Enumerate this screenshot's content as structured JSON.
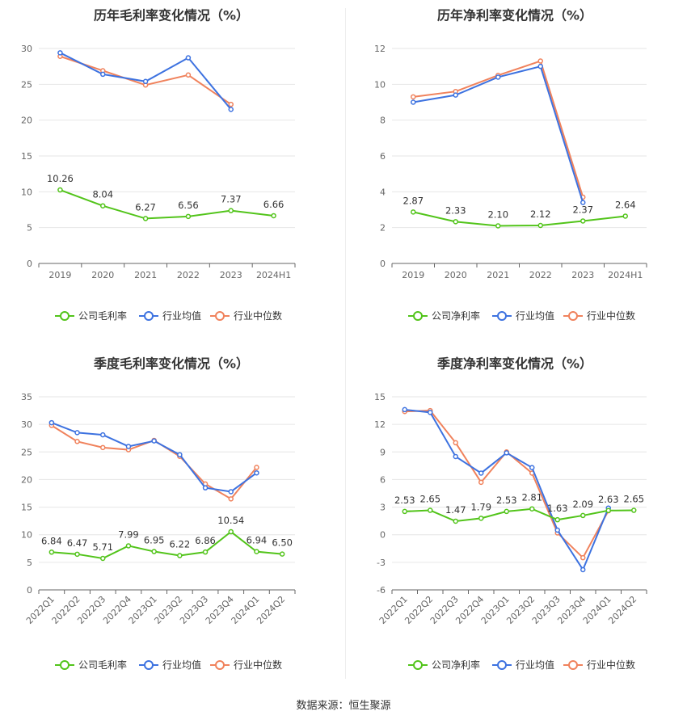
{
  "footer": {
    "label": "数据来源：恒生聚源"
  },
  "colors": {
    "company": "#52c41a",
    "avg": "#3d72e0",
    "median": "#f0825c",
    "grid": "#e6e6e6",
    "axis": "#666666"
  },
  "chart_data": [
    {
      "type": "line",
      "title": "历年毛利率变化情况（%）",
      "categories": [
        "2019",
        "2020",
        "2021",
        "2022",
        "2023",
        "2024H1"
      ],
      "ylim": [
        0,
        30
      ],
      "yticks": [
        0,
        5,
        10,
        15,
        20,
        25,
        30
      ],
      "grid": true,
      "legend_position": "bottom",
      "series": [
        {
          "name": "公司毛利率",
          "key": "company",
          "values": [
            10.26,
            8.04,
            6.27,
            6.56,
            7.37,
            6.66
          ],
          "labels": [
            "10.26",
            "8.04",
            "6.27",
            "6.56",
            "7.37",
            "6.66"
          ]
        },
        {
          "name": "行业均值",
          "key": "avg",
          "values": [
            29.4,
            26.4,
            25.4,
            28.7,
            21.5,
            null
          ]
        },
        {
          "name": "行业中位数",
          "key": "median",
          "values": [
            28.9,
            26.9,
            24.9,
            26.3,
            22.2,
            null
          ]
        }
      ]
    },
    {
      "type": "line",
      "title": "历年净利率变化情况（%）",
      "categories": [
        "2019",
        "2020",
        "2021",
        "2022",
        "2023",
        "2024H1"
      ],
      "ylim": [
        0,
        12
      ],
      "yticks": [
        0,
        2,
        4,
        6,
        8,
        10,
        12
      ],
      "grid": true,
      "legend_position": "bottom",
      "series": [
        {
          "name": "公司净利率",
          "key": "company",
          "values": [
            2.87,
            2.33,
            2.1,
            2.12,
            2.37,
            2.64
          ],
          "labels": [
            "2.87",
            "2.33",
            "2.10",
            "2.12",
            "2.37",
            "2.64"
          ]
        },
        {
          "name": "行业均值",
          "key": "avg",
          "values": [
            9.0,
            9.4,
            10.4,
            11.0,
            3.4,
            null
          ]
        },
        {
          "name": "行业中位数",
          "key": "median",
          "values": [
            9.3,
            9.6,
            10.5,
            11.3,
            3.7,
            null
          ]
        }
      ]
    },
    {
      "type": "line",
      "title": "季度毛利率变化情况（%）",
      "categories": [
        "2022Q1",
        "2022Q2",
        "2022Q3",
        "2022Q4",
        "2023Q1",
        "2023Q2",
        "2023Q3",
        "2023Q4",
        "2024Q1",
        "2024Q2"
      ],
      "ylim": [
        0,
        35
      ],
      "yticks": [
        0,
        5,
        10,
        15,
        20,
        25,
        30,
        35
      ],
      "grid": true,
      "legend_position": "bottom",
      "series": [
        {
          "name": "公司毛利率",
          "key": "company",
          "values": [
            6.84,
            6.47,
            5.71,
            7.99,
            6.95,
            6.22,
            6.86,
            10.54,
            6.94,
            6.5
          ],
          "labels": [
            "6.84",
            "6.47",
            "5.71",
            "7.99",
            "6.95",
            "6.22",
            "6.86",
            "10.54",
            "6.94",
            "6.50"
          ]
        },
        {
          "name": "行业均值",
          "key": "avg",
          "values": [
            30.3,
            28.5,
            28.1,
            26.0,
            27.0,
            24.5,
            18.5,
            17.8,
            21.2,
            null
          ]
        },
        {
          "name": "行业中位数",
          "key": "median",
          "values": [
            29.8,
            26.9,
            25.8,
            25.4,
            27.1,
            24.2,
            19.2,
            16.5,
            22.2,
            null
          ]
        }
      ]
    },
    {
      "type": "line",
      "title": "季度净利率变化情况（%）",
      "categories": [
        "2022Q1",
        "2022Q2",
        "2022Q3",
        "2022Q4",
        "2023Q1",
        "2023Q2",
        "2023Q3",
        "2023Q4",
        "2024Q1",
        "2024Q2"
      ],
      "ylim": [
        -6,
        15
      ],
      "yticks": [
        -6,
        -3,
        0,
        3,
        6,
        9,
        12,
        15
      ],
      "grid": true,
      "legend_position": "bottom",
      "series": [
        {
          "name": "公司净利率",
          "key": "company",
          "values": [
            2.53,
            2.65,
            1.47,
            1.79,
            2.53,
            2.81,
            1.63,
            2.09,
            2.63,
            2.65
          ],
          "labels": [
            "2.53",
            "2.65",
            "1.47",
            "1.79",
            "2.53",
            "2.81",
            "1.63",
            "2.09",
            "2.63",
            "2.65"
          ]
        },
        {
          "name": "行业均值",
          "key": "avg",
          "values": [
            13.6,
            13.3,
            8.5,
            6.7,
            8.9,
            7.3,
            0.5,
            -3.8,
            2.9,
            null
          ]
        },
        {
          "name": "行业中位数",
          "key": "median",
          "values": [
            13.4,
            13.5,
            10.0,
            5.7,
            9.0,
            6.7,
            0.2,
            -2.5,
            2.6,
            null
          ]
        }
      ]
    }
  ]
}
